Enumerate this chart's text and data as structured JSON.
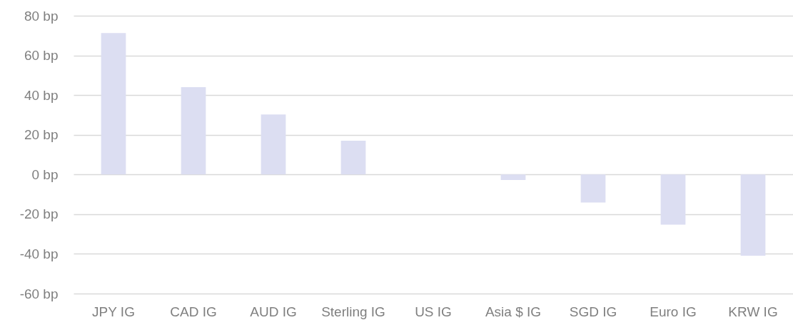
{
  "chart_data": {
    "type": "bar",
    "categories": [
      "JPY IG",
      "CAD IG",
      "AUD IG",
      "Sterling IG",
      "US IG",
      "Asia $ IG",
      "SGD IG",
      "Euro IG",
      "KRW IG"
    ],
    "values": [
      71.3,
      44.0,
      30.2,
      17.0,
      0,
      -2.8,
      -14.1,
      -25.3,
      -40.9
    ],
    "color": "#dcdef2",
    "ylim": [
      -60,
      80
    ],
    "yticks": [
      {
        "value": -60,
        "label": "-60 bp"
      },
      {
        "value": -40,
        "label": "-40 bp"
      },
      {
        "value": -20,
        "label": "-20 bp"
      },
      {
        "value": 0,
        "label": "0 bp"
      },
      {
        "value": 20,
        "label": "20 bp"
      },
      {
        "value": 40,
        "label": "40 bp"
      },
      {
        "value": 60,
        "label": "60 bp"
      },
      {
        "value": 80,
        "label": "80 bp"
      }
    ],
    "grid": "y"
  }
}
